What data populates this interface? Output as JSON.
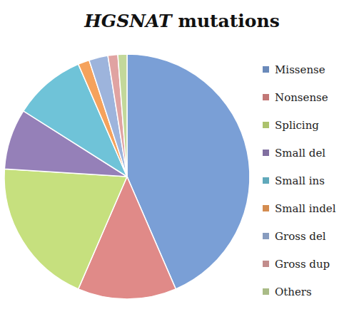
{
  "chart_data": {
    "type": "pie",
    "title": "HGSNAT mutations",
    "categories": [
      "Missense",
      "Nonsense",
      "Splicing",
      "Small del",
      "Small ins",
      "Small indel",
      "Gross del",
      "Gross dup",
      "Others"
    ],
    "values": [
      43.5,
      13,
      19.5,
      8,
      9.5,
      1.5,
      2.5,
      1.3,
      1.2
    ],
    "colors": [
      "#7a9fd6",
      "#e08a88",
      "#c6e07e",
      "#9580b8",
      "#6fc3d8",
      "#f5a25c",
      "#9db4dc",
      "#e0a3a2",
      "#c3d89a"
    ],
    "legend": "right"
  }
}
